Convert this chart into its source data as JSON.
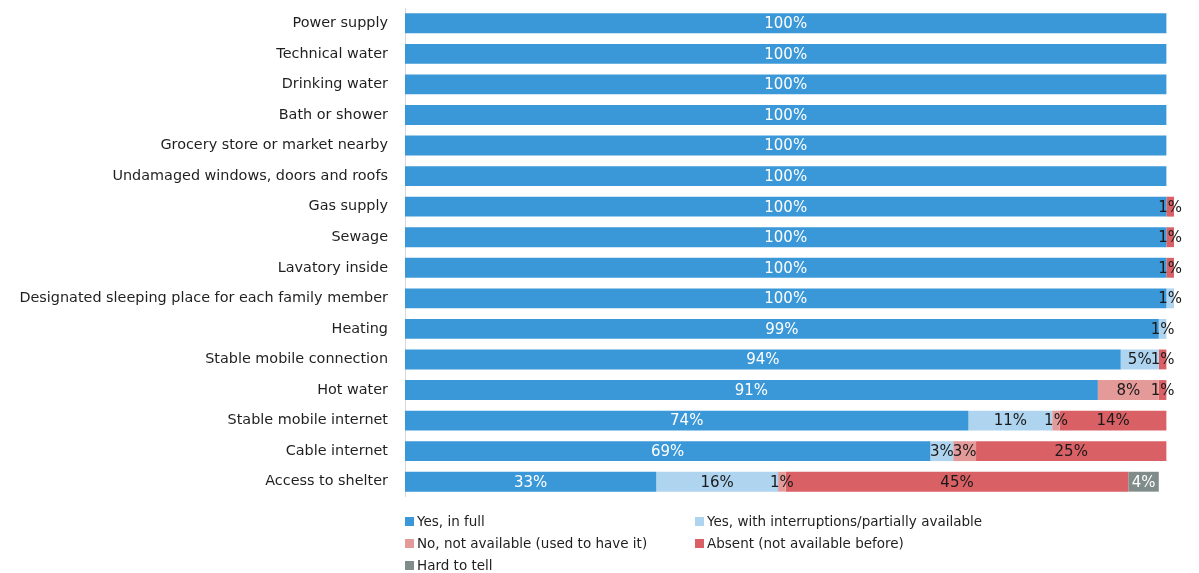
{
  "chart_data": {
    "type": "bar",
    "orientation": "horizontal",
    "stacked": true,
    "legend": "bottom",
    "tick_labels": "y",
    "categories": [
      "Power supply",
      "Technical water",
      "Drinking water",
      "Bath or shower",
      "Grocery store or market nearby",
      "Undamaged windows, doors and roofs",
      "Gas supply",
      "Sewage",
      "Lavatory inside",
      "Designated sleeping place for each family member",
      "Heating",
      "Stable mobile connection",
      "Hot water",
      "Stable mobile internet",
      "Cable internet",
      "Access to shelter"
    ],
    "series": [
      {
        "name": "Yes, in full",
        "color": "#3a98d8",
        "values": [
          100,
          100,
          100,
          100,
          100,
          100,
          100,
          100,
          100,
          100,
          99,
          94,
          91,
          74,
          69,
          33
        ],
        "value_labels": [
          "100%",
          "100%",
          "100%",
          "100%",
          "100%",
          "100%",
          "100%",
          "100%",
          "100%",
          "100%",
          "99%",
          "94%",
          "91%",
          "74%",
          "69%",
          "33%"
        ]
      },
      {
        "name": "Yes, with interruptions/partially available",
        "color": "#aed4ef",
        "values": [
          null,
          null,
          null,
          null,
          null,
          null,
          null,
          null,
          null,
          1,
          1,
          5,
          null,
          11,
          3,
          16
        ],
        "value_labels": [
          null,
          null,
          null,
          null,
          null,
          null,
          null,
          null,
          null,
          "1%",
          "1%",
          "5%",
          null,
          "11%",
          "3%",
          "16%"
        ]
      },
      {
        "name": "No, not available (used to have it)",
        "color": "#e59a9a",
        "values": [
          null,
          null,
          null,
          null,
          null,
          null,
          null,
          null,
          null,
          null,
          null,
          null,
          8,
          1,
          3,
          1
        ],
        "value_labels": [
          null,
          null,
          null,
          null,
          null,
          null,
          null,
          null,
          null,
          null,
          null,
          null,
          "8%",
          "1%",
          "3%",
          "1%"
        ]
      },
      {
        "name": "Absent (not available before)",
        "color": "#d96065",
        "values": [
          null,
          null,
          null,
          null,
          null,
          null,
          1,
          1,
          1,
          null,
          null,
          1,
          1,
          14,
          25,
          45
        ],
        "value_labels": [
          null,
          null,
          null,
          null,
          null,
          null,
          "1%",
          "1%",
          "1%",
          null,
          null,
          "1%",
          "1%",
          "14%",
          "25%",
          "45%"
        ]
      },
      {
        "name": "Hard to tell",
        "color": "#7f8c8a",
        "values": [
          null,
          null,
          null,
          null,
          null,
          null,
          null,
          null,
          null,
          null,
          null,
          null,
          null,
          null,
          null,
          4
        ],
        "value_labels": [
          null,
          null,
          null,
          null,
          null,
          null,
          null,
          null,
          null,
          null,
          null,
          null,
          null,
          null,
          null,
          "4%"
        ]
      }
    ]
  }
}
